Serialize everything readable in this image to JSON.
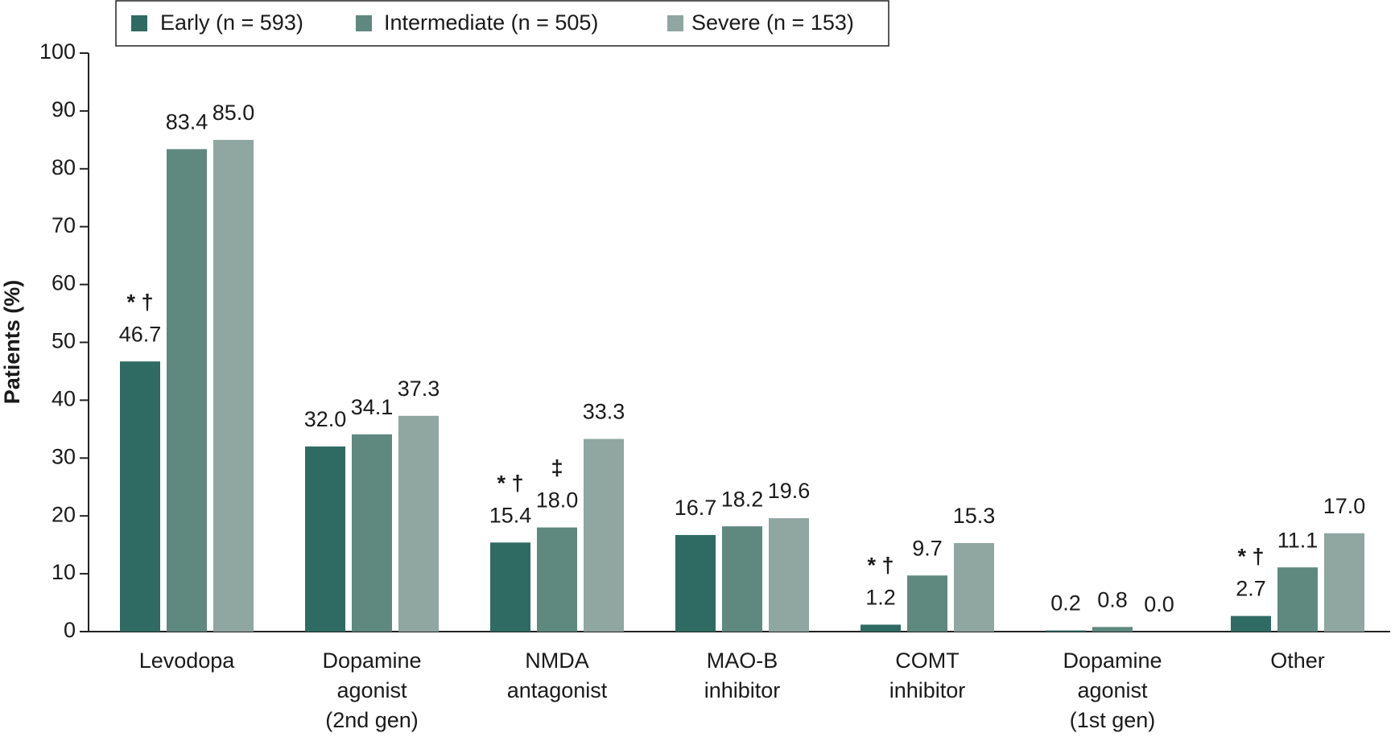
{
  "chart_data": {
    "type": "bar",
    "y_label": "Patients (%)",
    "categories": [
      [
        "Levodopa"
      ],
      [
        "Dopamine",
        "agonist",
        "(2nd gen)"
      ],
      [
        "NMDA",
        "antagonist"
      ],
      [
        "MAO-B",
        "inhibitor"
      ],
      [
        "COMT",
        "inhibitor"
      ],
      [
        "Dopamine",
        "agonist",
        "(1st gen)"
      ],
      [
        "Other"
      ]
    ],
    "series": [
      {
        "name": "Early (n = 593)",
        "color": "#2f6b62",
        "values": [
          46.7,
          32,
          15.4,
          16.7,
          1.2,
          0.2,
          2.7
        ],
        "value_labels": [
          "46.7",
          "32.0",
          "15.4",
          "16.7",
          "1.2",
          "0.2",
          "2.7"
        ],
        "markers": [
          "* †",
          null,
          "* †",
          null,
          "* †",
          null,
          "* †"
        ]
      },
      {
        "name": "Intermediate (n = 505)",
        "color": "#5f887f",
        "values": [
          83.4,
          34.1,
          18,
          18.2,
          9.7,
          0.8,
          11.1
        ],
        "value_labels": [
          "83.4",
          "34.1",
          "18.0",
          "18.2",
          "9.7",
          "0.8",
          "11.1"
        ],
        "markers": [
          null,
          null,
          "‡",
          null,
          null,
          null,
          null
        ]
      },
      {
        "name": "Severe (n = 153)",
        "color": "#8fa6a1",
        "values": [
          85,
          37.3,
          33.3,
          19.6,
          15.3,
          0,
          17
        ],
        "value_labels": [
          "85.0",
          "37.3",
          "33.3",
          "19.6",
          "15.3",
          "0.0",
          "17.0"
        ],
        "markers": [
          null,
          null,
          null,
          null,
          null,
          null,
          null
        ]
      }
    ],
    "ylim": [
      0,
      100
    ],
    "yticks": [
      0,
      10,
      20,
      30,
      40,
      50,
      60,
      70,
      80,
      90,
      100
    ],
    "grid": false
  }
}
